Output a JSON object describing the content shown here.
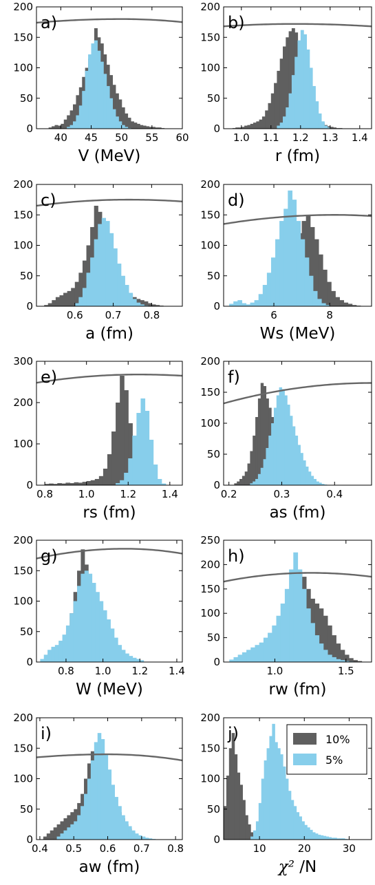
{
  "colors": {
    "dark": "#5f5f5f",
    "light": "#87ceeb",
    "curve": "#666666"
  },
  "legend": {
    "entries": [
      {
        "label": "10%",
        "color": "#5f5f5f"
      },
      {
        "label": "5%",
        "color": "#87ceeb"
      }
    ]
  },
  "chart_data": [
    {
      "type": "bar",
      "letter": "a)",
      "xlabel": "V (MeV)",
      "xlim": [
        36,
        60
      ],
      "ylim": [
        0,
        200
      ],
      "xticks": [
        40,
        45,
        50,
        55,
        60
      ],
      "xticklabels": [
        "40",
        "45",
        "50",
        "55",
        "60"
      ],
      "yticks": [
        0,
        50,
        100,
        150,
        200
      ],
      "yticklabels": [
        "0",
        "50",
        "100",
        "150",
        "200"
      ],
      "bin_width": 0.5,
      "series": [
        {
          "color": "dark",
          "x0": 38,
          "values": [
            2,
            4,
            6,
            5,
            8,
            15,
            22,
            30,
            40,
            55,
            68,
            85,
            100,
            115,
            135,
            165,
            150,
            140,
            122,
            105,
            88,
            72,
            58,
            48,
            35,
            25,
            18,
            12,
            10,
            8,
            6,
            5,
            4,
            3,
            3,
            2,
            2,
            1
          ]
        },
        {
          "color": "light",
          "x0": 41,
          "values": [
            3,
            6,
            12,
            22,
            38,
            62,
            95,
            122,
            140,
            145,
            128,
            110,
            90,
            70,
            50,
            32,
            20,
            12,
            6,
            3,
            1
          ]
        }
      ],
      "curve": {
        "left": 174,
        "peak": 180,
        "right": 175,
        "peak_x": 50
      }
    },
    {
      "type": "bar",
      "letter": "b)",
      "xlabel": "r (fm)",
      "xlim": [
        0.94,
        1.44
      ],
      "ylim": [
        0,
        200
      ],
      "xticks": [
        1.0,
        1.1,
        1.2,
        1.3,
        1.4
      ],
      "xticklabels": [
        "1.0",
        "1.1",
        "1.2",
        "1.3",
        "1.4"
      ],
      "yticks": [
        0,
        50,
        100,
        150,
        200
      ],
      "yticklabels": [
        "0",
        "50",
        "100",
        "150",
        "200"
      ],
      "bin_width": 0.01,
      "series": [
        {
          "color": "dark",
          "x0": 0.97,
          "values": [
            1,
            2,
            2,
            3,
            5,
            6,
            8,
            10,
            12,
            15,
            20,
            30,
            42,
            58,
            75,
            95,
            115,
            135,
            150,
            160,
            165,
            158,
            142,
            120,
            98,
            75,
            55,
            38,
            25,
            15,
            10,
            6,
            4,
            3,
            2,
            1,
            1
          ]
        },
        {
          "color": "light",
          "x0": 1.12,
          "values": [
            5,
            10,
            20,
            35,
            58,
            88,
            118,
            145,
            162,
            155,
            130,
            100,
            70,
            45,
            25,
            12,
            5,
            2
          ]
        }
      ],
      "curve": {
        "left": 168,
        "peak": 172,
        "right": 168,
        "peak_x": 1.18
      }
    },
    {
      "type": "bar",
      "letter": "c)",
      "xlabel": "a (fm)",
      "xlim": [
        0.5,
        0.88
      ],
      "ylim": [
        0,
        200
      ],
      "xticks": [
        0.6,
        0.7,
        0.8
      ],
      "xticklabels": [
        "0.6",
        "0.7",
        "0.8"
      ],
      "yticks": [
        0,
        50,
        100,
        150,
        200
      ],
      "yticklabels": [
        "0",
        "50",
        "100",
        "150",
        "200"
      ],
      "bin_width": 0.01,
      "series": [
        {
          "color": "dark",
          "x0": 0.52,
          "values": [
            2,
            5,
            10,
            15,
            18,
            22,
            25,
            30,
            40,
            55,
            75,
            100,
            130,
            165,
            155,
            130,
            105,
            80,
            55,
            40,
            30,
            25,
            20,
            15,
            12,
            10,
            8,
            5,
            3,
            2,
            1
          ]
        },
        {
          "color": "light",
          "x0": 0.6,
          "values": [
            5,
            15,
            30,
            55,
            80,
            110,
            135,
            145,
            140,
            120,
            95,
            70,
            50,
            35,
            22,
            12,
            6,
            3,
            1
          ]
        }
      ],
      "curve": {
        "left": 165,
        "peak": 175,
        "right": 172,
        "peak_x": 0.74
      }
    },
    {
      "type": "bar",
      "letter": "d)",
      "xlabel": "Ws (MeV)",
      "xlim": [
        4.2,
        9.5
      ],
      "ylim": [
        0,
        200
      ],
      "xticks": [
        6,
        8
      ],
      "xticklabels": [
        "6",
        "8"
      ],
      "yticks": [
        0,
        50,
        100,
        150,
        200
      ],
      "yticklabels": [
        "0",
        "50",
        "100",
        "150",
        "200"
      ],
      "bin_width": 0.15,
      "series": [
        {
          "color": "dark",
          "x0": 5.5,
          "values": [
            2,
            4,
            8,
            15,
            25,
            40,
            60,
            85,
            105,
            120,
            140,
            150,
            130,
            110,
            85,
            60,
            40,
            25,
            15,
            10,
            6,
            4,
            2,
            1
          ]
        },
        {
          "color": "light",
          "x0": 4.4,
          "values": [
            4,
            8,
            10,
            5,
            3,
            6,
            10,
            20,
            35,
            55,
            80,
            110,
            140,
            160,
            190,
            175,
            140,
            110,
            80,
            50,
            25,
            12,
            5,
            2
          ]
        }
      ],
      "curve": {
        "left": 135,
        "peak": 150,
        "right": 148,
        "peak_x": 8.2
      }
    },
    {
      "type": "bar",
      "letter": "e)",
      "xlabel": "rs (fm)",
      "xlim": [
        0.76,
        1.46
      ],
      "ylim": [
        0,
        300
      ],
      "xticks": [
        0.8,
        1.0,
        1.2,
        1.4
      ],
      "xticklabels": [
        "0.8",
        "1.0",
        "1.2",
        "1.4"
      ],
      "yticks": [
        0,
        100,
        200,
        300
      ],
      "yticklabels": [
        "0",
        "100",
        "200",
        "300"
      ],
      "bin_width": 0.02,
      "series": [
        {
          "color": "dark",
          "x0": 0.8,
          "values": [
            3,
            4,
            3,
            5,
            4,
            6,
            5,
            7,
            6,
            8,
            10,
            12,
            15,
            22,
            40,
            75,
            130,
            200,
            265,
            230,
            150,
            80,
            30,
            10,
            3
          ]
        },
        {
          "color": "light",
          "x0": 1.14,
          "values": [
            5,
            12,
            30,
            65,
            120,
            175,
            210,
            180,
            110,
            50,
            15,
            4
          ]
        }
      ],
      "curve": {
        "left": 248,
        "peak": 268,
        "right": 265,
        "peak_x": 1.25
      }
    },
    {
      "type": "bar",
      "letter": "f)",
      "xlabel": "as (fm)",
      "xlim": [
        0.19,
        0.47
      ],
      "ylim": [
        0,
        200
      ],
      "xticks": [
        0.2,
        0.3,
        0.4
      ],
      "xticklabels": [
        "0.2",
        "0.3",
        "0.4"
      ],
      "yticks": [
        0,
        50,
        100,
        150,
        200
      ],
      "yticklabels": [
        "0",
        "50",
        "100",
        "150",
        "200"
      ],
      "bin_width": 0.005,
      "series": [
        {
          "color": "dark",
          "x0": 0.21,
          "values": [
            3,
            6,
            10,
            15,
            22,
            35,
            55,
            80,
            110,
            140,
            165,
            160,
            140,
            125,
            110,
            95,
            80,
            62,
            50,
            38,
            28,
            20,
            15,
            10,
            8,
            6,
            5,
            4,
            3,
            3,
            2,
            2,
            1,
            1
          ]
        },
        {
          "color": "light",
          "x0": 0.24,
          "values": [
            3,
            6,
            10,
            18,
            28,
            42,
            60,
            80,
            100,
            125,
            145,
            158,
            155,
            145,
            130,
            112,
            95,
            80,
            65,
            52,
            40,
            30,
            22,
            15,
            10,
            6,
            4,
            2,
            1
          ]
        }
      ],
      "curve": {
        "left": 132,
        "peak": 165,
        "right": 165,
        "peak_x": 0.47
      }
    },
    {
      "type": "bar",
      "letter": "g)",
      "xlabel": "W (MeV)",
      "xlim": [
        0.64,
        1.43
      ],
      "ylim": [
        0,
        200
      ],
      "xticks": [
        0.8,
        1.0,
        1.2,
        1.4
      ],
      "xticklabels": [
        "0.8",
        "1.0",
        "1.2",
        "1.4"
      ],
      "yticks": [
        0,
        50,
        100,
        150,
        200
      ],
      "yticklabels": [
        "0",
        "50",
        "100",
        "150",
        "200"
      ],
      "bin_width": 0.02,
      "series": [
        {
          "color": "dark",
          "x0": 0.7,
          "values": [
            3,
            5,
            10,
            18,
            30,
            50,
            80,
            115,
            150,
            185,
            160,
            125,
            95,
            70,
            50,
            35,
            25,
            15,
            10,
            6,
            3,
            2
          ]
        },
        {
          "color": "light",
          "x0": 0.66,
          "values": [
            5,
            12,
            20,
            25,
            28,
            35,
            45,
            60,
            80,
            100,
            125,
            145,
            150,
            145,
            130,
            115,
            100,
            85,
            70,
            55,
            40,
            28,
            20,
            14,
            10,
            7,
            5,
            3
          ]
        }
      ],
      "curve": {
        "left": 170,
        "peak": 186,
        "right": 178,
        "peak_x": 1.12
      }
    },
    {
      "type": "bar",
      "letter": "h)",
      "xlabel": "rw (fm)",
      "xlim": [
        0.64,
        1.68
      ],
      "ylim": [
        0,
        250
      ],
      "xticks": [
        1.0,
        1.5
      ],
      "xticklabels": [
        "1.0",
        "1.5"
      ],
      "yticks": [
        0,
        50,
        100,
        150,
        200,
        250
      ],
      "yticklabels": [
        "0",
        "50",
        "100",
        "150",
        "200",
        "250"
      ],
      "bin_width": 0.03,
      "series": [
        {
          "color": "dark",
          "x0": 0.95,
          "values": [
            5,
            10,
            20,
            35,
            60,
            95,
            140,
            185,
            175,
            150,
            130,
            120,
            110,
            95,
            75,
            55,
            38,
            25,
            15,
            8,
            4,
            2
          ]
        },
        {
          "color": "light",
          "x0": 0.68,
          "values": [
            5,
            10,
            15,
            20,
            25,
            30,
            35,
            40,
            50,
            60,
            75,
            95,
            120,
            150,
            190,
            225,
            190,
            150,
            110,
            80,
            55,
            38,
            25,
            15,
            10,
            6,
            4,
            2,
            1
          ]
        }
      ],
      "curve": {
        "left": 165,
        "peak": 183,
        "right": 175,
        "peak_x": 1.25
      }
    },
    {
      "type": "bar",
      "letter": "i)",
      "xlabel": "aw (fm)",
      "xlim": [
        0.39,
        0.82
      ],
      "ylim": [
        0,
        200
      ],
      "xticks": [
        0.4,
        0.5,
        0.6,
        0.7,
        0.8
      ],
      "xticklabels": [
        "0.4",
        "0.5",
        "0.6",
        "0.7",
        "0.8"
      ],
      "yticks": [
        0,
        50,
        100,
        150,
        200
      ],
      "yticklabels": [
        "0",
        "50",
        "100",
        "150",
        "200"
      ],
      "bin_width": 0.01,
      "series": [
        {
          "color": "dark",
          "x0": 0.41,
          "values": [
            5,
            10,
            15,
            20,
            25,
            30,
            35,
            40,
            45,
            50,
            60,
            75,
            100,
            125,
            145,
            140,
            130,
            110,
            95,
            80,
            65,
            55,
            45,
            35,
            25,
            18,
            12,
            8,
            5,
            3,
            2
          ]
        },
        {
          "color": "light",
          "x0": 0.45,
          "values": [
            5,
            10,
            15,
            20,
            25,
            30,
            40,
            55,
            75,
            100,
            130,
            160,
            175,
            165,
            140,
            115,
            90,
            70,
            55,
            40,
            30,
            22,
            15,
            10,
            7,
            5,
            3,
            2,
            1
          ]
        }
      ],
      "curve": {
        "left": 135,
        "peak": 140,
        "right": 130,
        "peak_x": 0.6
      }
    },
    {
      "type": "bar",
      "letter": "j)",
      "xlabel": "/N",
      "xlabel_math": "χ²",
      "xlim": [
        2,
        35
      ],
      "ylim": [
        0,
        200
      ],
      "xticks": [
        10,
        20,
        30
      ],
      "xticklabels": [
        "10",
        "20",
        "30"
      ],
      "yticks": [
        0,
        50,
        100,
        150,
        200
      ],
      "yticklabels": [
        "0",
        "50",
        "100",
        "150",
        "200"
      ],
      "bin_width": 0.6,
      "series": [
        {
          "color": "dark",
          "x0": 2,
          "values": [
            55,
            105,
            150,
            175,
            140,
            110,
            90,
            65,
            40,
            25,
            12,
            5
          ]
        },
        {
          "color": "light",
          "x0": 8,
          "values": [
            5,
            15,
            30,
            60,
            100,
            130,
            150,
            170,
            190,
            160,
            150,
            140,
            120,
            100,
            80,
            65,
            55,
            45,
            38,
            30,
            24,
            20,
            16,
            12,
            10,
            8,
            7,
            6,
            5,
            4,
            3,
            3,
            2,
            2,
            2,
            1
          ]
        }
      ]
    }
  ]
}
